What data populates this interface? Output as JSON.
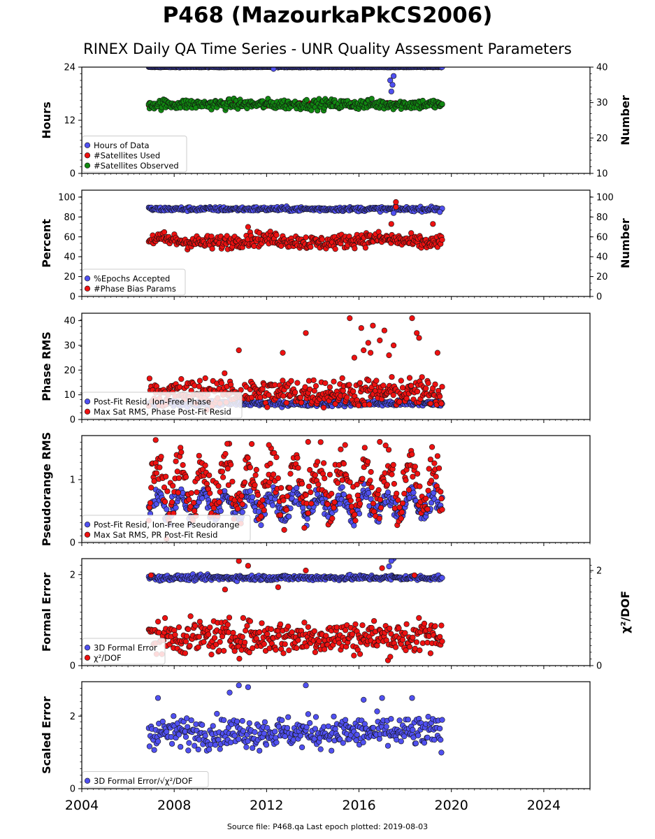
{
  "header": {
    "title": "P468 (MazourkaPkCS2006)",
    "subtitle": "RINEX Daily QA Time Series - UNR Quality Assessment Parameters"
  },
  "footer": {
    "text": "Source file: P468.qa Last epoch plotted: 2019-08-03"
  },
  "colors": {
    "blue": "#5050f0",
    "red": "#ee1111",
    "green": "#118811",
    "edge": "#111111"
  },
  "chart_data": [
    {
      "type": "scatter",
      "ylabel": "Hours",
      "ylim": [
        0,
        24
      ],
      "yticks": [
        "0",
        "12",
        "24"
      ],
      "y2label": "Number",
      "y2lim": [
        10,
        40
      ],
      "y2ticks": [
        "10",
        "20",
        "30",
        "40"
      ],
      "x": {
        "range": [
          2004,
          2026
        ],
        "ticks": [
          "2004",
          "2008",
          "2012",
          "2016",
          "2020",
          "2024"
        ],
        "data_start": 2006.9,
        "data_end": 2019.6
      },
      "legend_position": "lower-left",
      "series": [
        {
          "name": "Hours of Data",
          "color": "#5050f0",
          "axis": "left",
          "base": 24,
          "noise": 0.05,
          "outliers": [
            [
              2017.4,
              18.5
            ],
            [
              2017.45,
              20
            ],
            [
              2017.5,
              22
            ],
            [
              2017.35,
              21
            ],
            [
              2012.3,
              23.6
            ]
          ]
        },
        {
          "name": "#Satellites Used",
          "color": "#ee1111",
          "axis": "right",
          "base": 29.5,
          "noise": 0.3,
          "outliers": [
            [
              2009.3,
              30
            ]
          ]
        },
        {
          "name": "#Satellites Observed",
          "color": "#118811",
          "axis": "right",
          "base": 29.5,
          "noise": 1.0,
          "outliers": []
        }
      ]
    },
    {
      "type": "scatter",
      "ylabel": "Percent",
      "ylim": [
        0,
        107
      ],
      "yticks": [
        "0",
        "20",
        "40",
        "60",
        "80",
        "100"
      ],
      "y2label": "Number",
      "y2lim": [
        0,
        107
      ],
      "y2ticks": [
        "0",
        "20",
        "40",
        "60",
        "80",
        "100"
      ],
      "x": {
        "range": [
          2004,
          2026
        ],
        "data_start": 2006.9,
        "data_end": 2019.6
      },
      "legend_position": "lower-left",
      "series": [
        {
          "name": "%Epochs Accepted",
          "color": "#5050f0",
          "axis": "left",
          "base": 88,
          "noise": 1.5,
          "outliers": [
            [
              2017.5,
              84
            ],
            [
              2019.5,
              85
            ]
          ]
        },
        {
          "name": "#Phase Bias Params",
          "color": "#ee1111",
          "axis": "right",
          "base": 56,
          "noise": 5,
          "outliers": [
            [
              2017.6,
              95
            ],
            [
              2017.6,
              90
            ],
            [
              2017.4,
              73
            ],
            [
              2019.2,
              73
            ],
            [
              2011.2,
              70
            ]
          ]
        }
      ]
    },
    {
      "type": "scatter",
      "ylabel": "Phase RMS",
      "ylim": [
        0,
        43
      ],
      "yticks": [
        "0",
        "10",
        "20",
        "30",
        "40"
      ],
      "x": {
        "range": [
          2004,
          2026
        ],
        "data_start": 2006.9,
        "data_end": 2019.6
      },
      "legend_position": "lower-left",
      "series": [
        {
          "name": "Post-Fit Resid, Ion-Free Phase",
          "color": "#5050f0",
          "axis": "left",
          "base": 6.5,
          "noise": 0.8,
          "outliers": []
        },
        {
          "name": "Max Sat RMS, Phase Post-Fit Resid",
          "color": "#ee1111",
          "axis": "left",
          "base": 11,
          "noise": 4,
          "outliers": [
            [
              2015.6,
              41
            ],
            [
              2018.3,
              41
            ],
            [
              2016.1,
              37
            ],
            [
              2016.6,
              38
            ],
            [
              2017.1,
              36
            ],
            [
              2018.5,
              35
            ],
            [
              2013.7,
              35
            ],
            [
              2016.4,
              31
            ],
            [
              2016.9,
              32
            ],
            [
              2017.5,
              30
            ],
            [
              2018.6,
              33
            ],
            [
              2016.2,
              28
            ],
            [
              2016.5,
              27
            ],
            [
              2010.8,
              28
            ],
            [
              2019.4,
              27
            ],
            [
              2012.7,
              27
            ],
            [
              2017.3,
              26
            ],
            [
              2015.8,
              25
            ]
          ]
        }
      ]
    },
    {
      "type": "scatter",
      "ylabel": "Pseudorange RMS",
      "ylim": [
        0,
        1.7
      ],
      "yticks": [
        "0",
        "1"
      ],
      "x": {
        "range": [
          2004,
          2026
        ],
        "data_start": 2006.9,
        "data_end": 2019.6
      },
      "legend_position": "lower-left",
      "series": [
        {
          "name": "Post-Fit Resid, Ion-Free Pseudorange",
          "color": "#5050f0",
          "axis": "left",
          "base": 0.6,
          "noise": 0.12,
          "outliers": []
        },
        {
          "name": "Max Sat RMS, PR Post-Fit Resid",
          "color": "#ee1111",
          "axis": "left",
          "base": 0.9,
          "noise": 0.25,
          "outliers": [
            [
              2007.2,
              1.63
            ],
            [
              2013.8,
              1.6
            ],
            [
              2016.9,
              1.6
            ],
            [
              2010.3,
              1.57
            ],
            [
              2012.1,
              1.55
            ],
            [
              2015.4,
              1.55
            ]
          ]
        }
      ]
    },
    {
      "type": "scatter",
      "ylabel": "Formal Error",
      "ylim": [
        0,
        2.35
      ],
      "yticks": [
        "0",
        "2"
      ],
      "y2label": "χ²/DOF",
      "y2lim": [
        0,
        2.25
      ],
      "y2ticks": [
        "0",
        "2"
      ],
      "x": {
        "range": [
          2004,
          2026
        ],
        "data_start": 2006.9,
        "data_end": 2019.6
      },
      "legend_position": "lower-left",
      "series": [
        {
          "name": "3D Formal Error",
          "color": "#5050f0",
          "axis": "left",
          "base": 1.93,
          "noise": 0.04,
          "outliers": [
            [
              2017.5,
              2.35
            ],
            [
              2017.4,
              2.3
            ],
            [
              2017.3,
              2.18
            ]
          ]
        },
        {
          "name": "χ²/DOF",
          "color": "#ee1111",
          "axis": "right",
          "base": 0.6,
          "noise": 0.25,
          "outliers": [
            [
              2010.8,
              2.2
            ],
            [
              2011.2,
              2.1
            ],
            [
              2017.0,
              2.05
            ],
            [
              2013.7,
              2.0
            ],
            [
              2007.0,
              1.9
            ],
            [
              2012.5,
              1.65
            ],
            [
              2010.2,
              1.6
            ],
            [
              2018.4,
              1.9
            ]
          ]
        }
      ]
    },
    {
      "type": "scatter",
      "ylabel": "Scaled Error",
      "ylim": [
        0,
        2.95
      ],
      "yticks": [
        "0",
        "2"
      ],
      "x": {
        "range": [
          2004,
          2026
        ],
        "ticks": [
          "2004",
          "2008",
          "2012",
          "2016",
          "2020",
          "2024"
        ],
        "data_start": 2006.9,
        "data_end": 2019.6
      },
      "legend_position": "lower-left",
      "series": [
        {
          "name": "3D Formal Error/√χ²/DOF",
          "color": "#5050f0",
          "axis": "left",
          "base": 1.55,
          "noise": 0.3,
          "outliers": [
            [
              2010.8,
              2.85
            ],
            [
              2011.2,
              2.8
            ],
            [
              2013.7,
              2.85
            ],
            [
              2010.4,
              2.65
            ],
            [
              2007.3,
              2.5
            ],
            [
              2017.0,
              2.5
            ],
            [
              2018.3,
              2.5
            ],
            [
              2016.2,
              2.45
            ]
          ]
        }
      ]
    }
  ]
}
